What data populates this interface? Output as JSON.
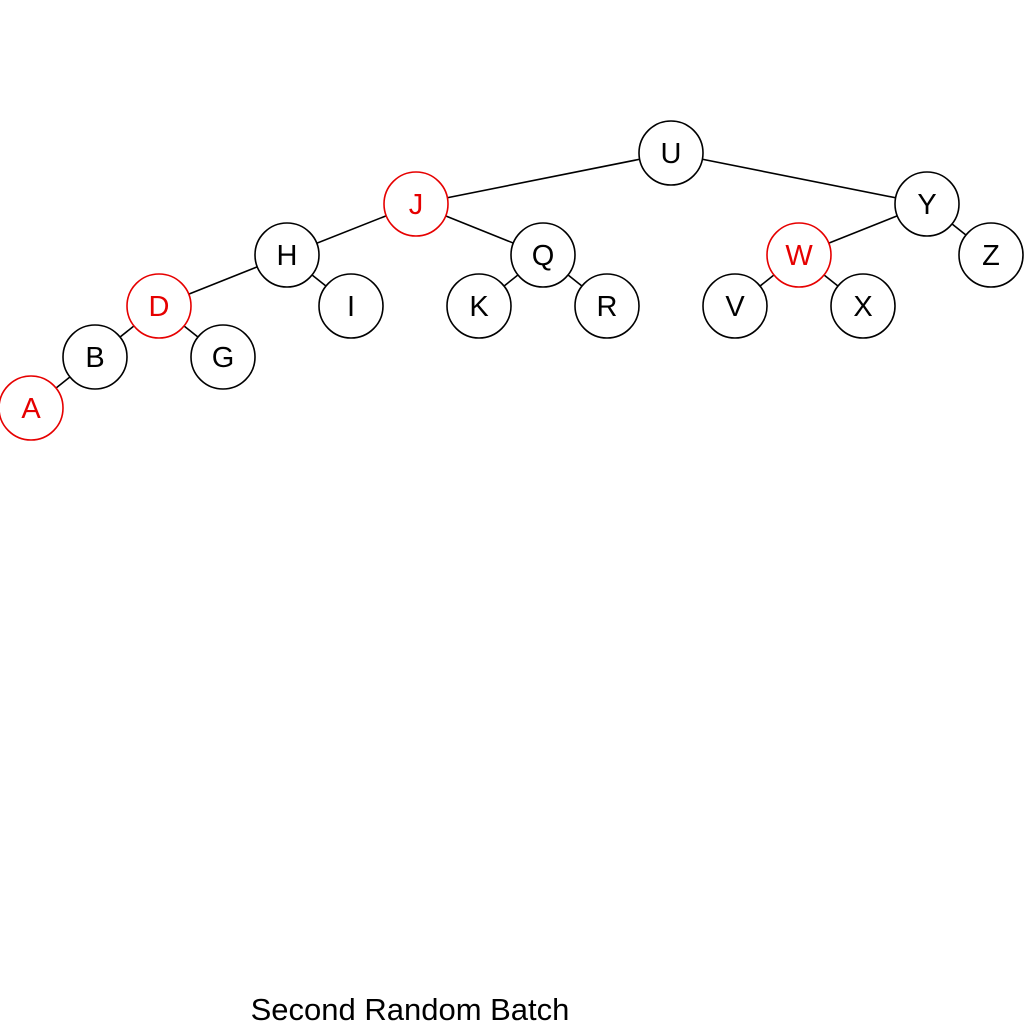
{
  "diagram": {
    "type": "red-black-tree",
    "caption": "Second Random Batch",
    "colors": {
      "black_node": "#000000",
      "red_node": "#e60000",
      "edge": "#000000",
      "fill": "#ffffff"
    },
    "nodes": [
      {
        "id": "U",
        "label": "U",
        "color": "black"
      },
      {
        "id": "J",
        "label": "J",
        "color": "red"
      },
      {
        "id": "Y",
        "label": "Y",
        "color": "black"
      },
      {
        "id": "H",
        "label": "H",
        "color": "black"
      },
      {
        "id": "Q",
        "label": "Q",
        "color": "black"
      },
      {
        "id": "W",
        "label": "W",
        "color": "red"
      },
      {
        "id": "Z",
        "label": "Z",
        "color": "black"
      },
      {
        "id": "D",
        "label": "D",
        "color": "red"
      },
      {
        "id": "I",
        "label": "I",
        "color": "black"
      },
      {
        "id": "K",
        "label": "K",
        "color": "black"
      },
      {
        "id": "R",
        "label": "R",
        "color": "black"
      },
      {
        "id": "V",
        "label": "V",
        "color": "black"
      },
      {
        "id": "X",
        "label": "X",
        "color": "black"
      },
      {
        "id": "B",
        "label": "B",
        "color": "black"
      },
      {
        "id": "G",
        "label": "G",
        "color": "black"
      },
      {
        "id": "A",
        "label": "A",
        "color": "red"
      }
    ],
    "edges": [
      {
        "from": "U",
        "to": "J"
      },
      {
        "from": "U",
        "to": "Y"
      },
      {
        "from": "J",
        "to": "H"
      },
      {
        "from": "J",
        "to": "Q"
      },
      {
        "from": "Y",
        "to": "W"
      },
      {
        "from": "Y",
        "to": "Z"
      },
      {
        "from": "H",
        "to": "D"
      },
      {
        "from": "H",
        "to": "I"
      },
      {
        "from": "Q",
        "to": "K"
      },
      {
        "from": "Q",
        "to": "R"
      },
      {
        "from": "W",
        "to": "V"
      },
      {
        "from": "W",
        "to": "X"
      },
      {
        "from": "D",
        "to": "B"
      },
      {
        "from": "D",
        "to": "G"
      },
      {
        "from": "B",
        "to": "A"
      }
    ]
  }
}
